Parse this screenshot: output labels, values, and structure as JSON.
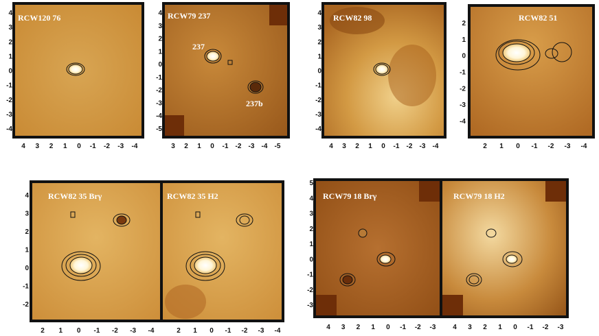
{
  "panels": [
    {
      "id": "p1",
      "label": "RCW120  76",
      "x_ticks": [
        "4",
        "3",
        "2",
        "1",
        "0",
        "-1",
        "-2",
        "-3",
        "-4"
      ],
      "y_ticks": [
        "4",
        "3",
        "2",
        "1",
        "0",
        "-1",
        "-2",
        "-3",
        "-4"
      ],
      "sources": []
    },
    {
      "id": "p2",
      "label": "RCW79  237",
      "x_ticks": [
        "3",
        "2",
        "1",
        "0",
        "-1",
        "-2",
        "-3",
        "-4",
        "-5"
      ],
      "y_ticks": [
        "4",
        "3",
        "2",
        "1",
        "0",
        "-1",
        "-2",
        "-3",
        "-4",
        "-5"
      ],
      "sources": [
        "237",
        "237b"
      ]
    },
    {
      "id": "p3",
      "label": "RCW82  98",
      "x_ticks": [
        "4",
        "3",
        "2",
        "1",
        "0",
        "-1",
        "-2",
        "-3",
        "-4"
      ],
      "y_ticks": [
        "4",
        "3",
        "2",
        "1",
        "0",
        "-1",
        "-2",
        "-3",
        "-4"
      ],
      "sources": []
    },
    {
      "id": "p4",
      "label": "RCW82 51",
      "x_ticks": [
        "2",
        "1",
        "0",
        "-1",
        "-2",
        "-3",
        "-4"
      ],
      "y_ticks": [
        "2",
        "1",
        "0",
        "-1",
        "-2",
        "-3",
        "-4"
      ],
      "sources": []
    },
    {
      "id": "p5a",
      "label": "RCW82 35   Brγ",
      "x_ticks": [
        "2",
        "1",
        "0",
        "-1",
        "-2",
        "-3",
        "-4"
      ],
      "y_ticks": [
        "4",
        "3",
        "2",
        "1",
        "0",
        "-1",
        "-2"
      ],
      "sources": []
    },
    {
      "id": "p5b",
      "label": "RCW82 35   H2",
      "x_ticks": [
        "2",
        "1",
        "0",
        "-1",
        "-2",
        "-3",
        "-4"
      ],
      "y_ticks": [],
      "sources": []
    },
    {
      "id": "p6a",
      "label": "RCW79 18     Brγ",
      "x_ticks": [
        "4",
        "3",
        "2",
        "1",
        "0",
        "-1",
        "-2",
        "-3"
      ],
      "y_ticks": [
        "5",
        "4",
        "3",
        "2",
        "1",
        "0",
        "-1",
        "-2",
        "-3"
      ],
      "sources": []
    },
    {
      "id": "p6b",
      "label": "RCW79 18    H2",
      "x_ticks": [
        "4",
        "3",
        "2",
        "1",
        "0",
        "-1",
        "-2",
        "-3"
      ],
      "y_ticks": [],
      "sources": []
    }
  ],
  "colors": {
    "frame": "#111111",
    "bg_light": "#d9a24a",
    "bg_dark": "#8a4a10",
    "label": "#ffffff"
  }
}
